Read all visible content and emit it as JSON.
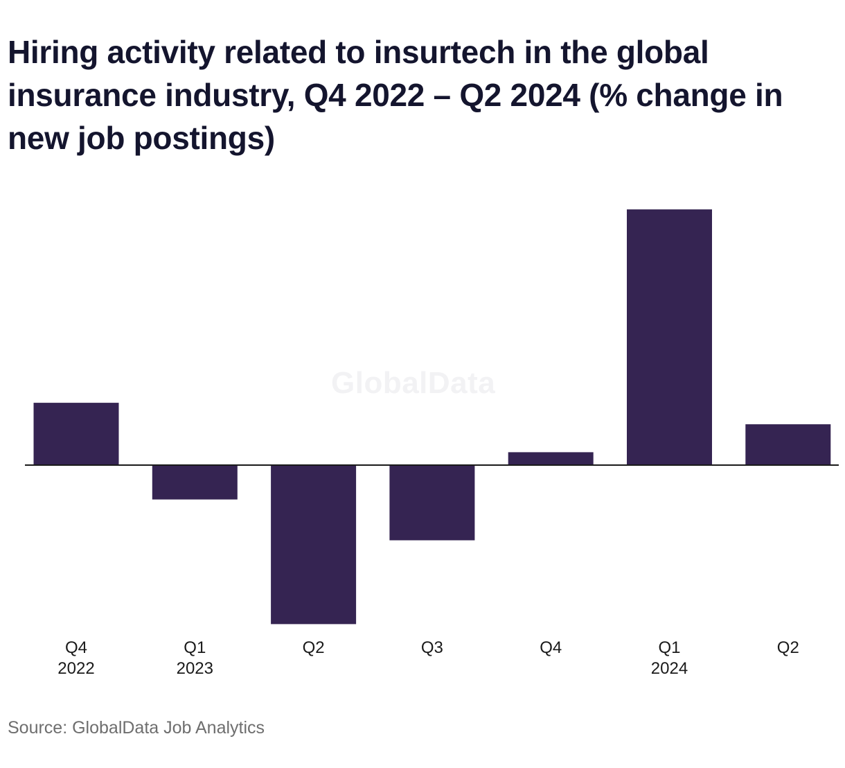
{
  "header": {
    "title": "Hiring activity related to insurtech in the global insurance industry, Q4 2022 – Q2 2024 (% change in new job postings)"
  },
  "watermark": "GlobalData",
  "footer": {
    "source": "Source: GlobalData Job Analytics"
  },
  "colors": {
    "bar": "#352452",
    "axis": "#1a1a1a",
    "tick_text": "#1a1a1a"
  },
  "chart_data": {
    "type": "bar",
    "title": "Hiring activity related to insurtech in the global insurance industry, Q4 2022 – Q2 2024 (% change in new job postings)",
    "categories": [
      {
        "quarter": "Q4",
        "year": "2022"
      },
      {
        "quarter": "Q1",
        "year": "2023"
      },
      {
        "quarter": "Q2",
        "year": ""
      },
      {
        "quarter": "Q3",
        "year": ""
      },
      {
        "quarter": "Q4",
        "year": ""
      },
      {
        "quarter": "Q1",
        "year": "2024"
      },
      {
        "quarter": "Q2",
        "year": ""
      }
    ],
    "values": [
      14.5,
      -8,
      -37,
      -17.5,
      3,
      59.5,
      9.5
    ],
    "ylim": [
      -40,
      60
    ],
    "xlabel": "",
    "ylabel": "",
    "grid": false,
    "legend": "none"
  }
}
